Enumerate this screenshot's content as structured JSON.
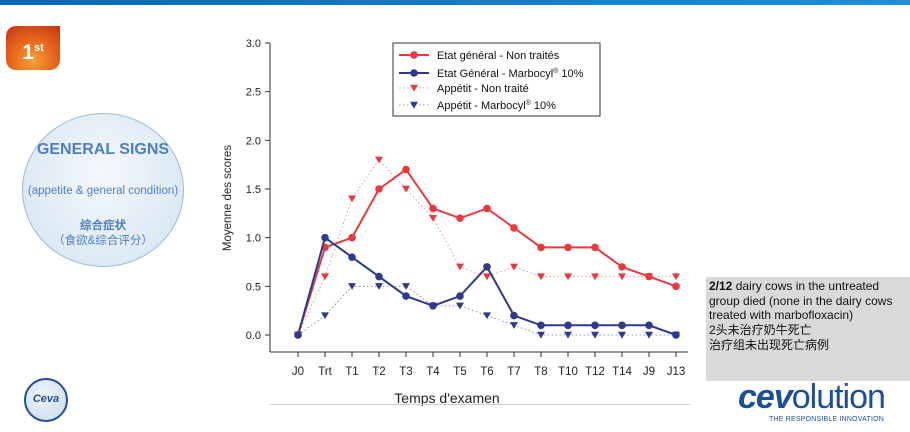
{
  "badge": {
    "number": "1",
    "suffix": "st"
  },
  "bubble": {
    "title": "GENERAL SIGNS",
    "subtitle": "(appetite & general condition)",
    "cn_title": "综合症状",
    "cn_subtitle": "（食欲&综合评分）"
  },
  "note": {
    "bold_lead": "2/12",
    "text_en": " dairy cows in the untreated group died (none in the dairy cows treated with marbofloxacin)",
    "text_cn_1": "2头未治疗奶牛死亡",
    "text_cn_2": "治疗组未出现死亡病例"
  },
  "logos": {
    "ceva": "Ceva",
    "cevolution_bold": "cev",
    "cevolution_rest": "olution",
    "tagline": "THE RESPONSIBLE INNOVATION"
  },
  "colors": {
    "red": "#e63a3f",
    "blue": "#2e3a8c",
    "accent": "#0b66b2"
  },
  "chart_data": {
    "type": "line",
    "xlabel": "Temps d'examen",
    "ylabel": "Moyenne des scores",
    "ylim": [
      0,
      3.0
    ],
    "yticks": [
      "0.0",
      "0.5",
      "1.0",
      "1.5",
      "2.0",
      "2.5",
      "3.0"
    ],
    "categories": [
      "J0",
      "Trt",
      "T1",
      "T2",
      "T3",
      "T4",
      "T5",
      "T6",
      "T7",
      "T8",
      "T10",
      "T12",
      "T14",
      "J9",
      "J13"
    ],
    "series": [
      {
        "name": "Etat général - Non traités",
        "style": "line-circle",
        "color": "#e63a3f",
        "values": [
          0,
          0.9,
          1.0,
          1.5,
          1.7,
          1.3,
          1.2,
          1.3,
          1.1,
          0.9,
          0.9,
          0.9,
          0.7,
          0.6,
          0.5
        ]
      },
      {
        "name": "Etat Général - Marbocyl® 10%",
        "style": "line-circle",
        "color": "#2e3a8c",
        "values": [
          0,
          1.0,
          0.8,
          0.6,
          0.4,
          0.3,
          0.4,
          0.7,
          0.2,
          0.1,
          0.1,
          0.1,
          0.1,
          0.1,
          0
        ]
      },
      {
        "name": "Appétit - Non traité",
        "style": "dotted-triangle",
        "color": "#e63a3f",
        "values": [
          0,
          0.6,
          1.4,
          1.8,
          1.5,
          1.2,
          0.7,
          0.6,
          0.7,
          0.6,
          0.6,
          0.6,
          0.6,
          0.6,
          0.6
        ]
      },
      {
        "name": "Appétit - Marbocyl® 10%",
        "style": "dotted-triangle",
        "color": "#2e3a8c",
        "values": [
          0,
          0.2,
          0.5,
          0.5,
          0.5,
          0.3,
          0.3,
          0.2,
          0.1,
          0,
          0,
          0,
          0,
          0,
          0
        ]
      }
    ],
    "legend_labels": [
      "Etat général - Non traités",
      "Etat Général - Marbocyl",
      "Appétit - Non traité",
      "Appétit - Marbocyl"
    ],
    "legend_suffix": " 10%",
    "legend_sup": "®",
    "legend_position": "top-right"
  }
}
